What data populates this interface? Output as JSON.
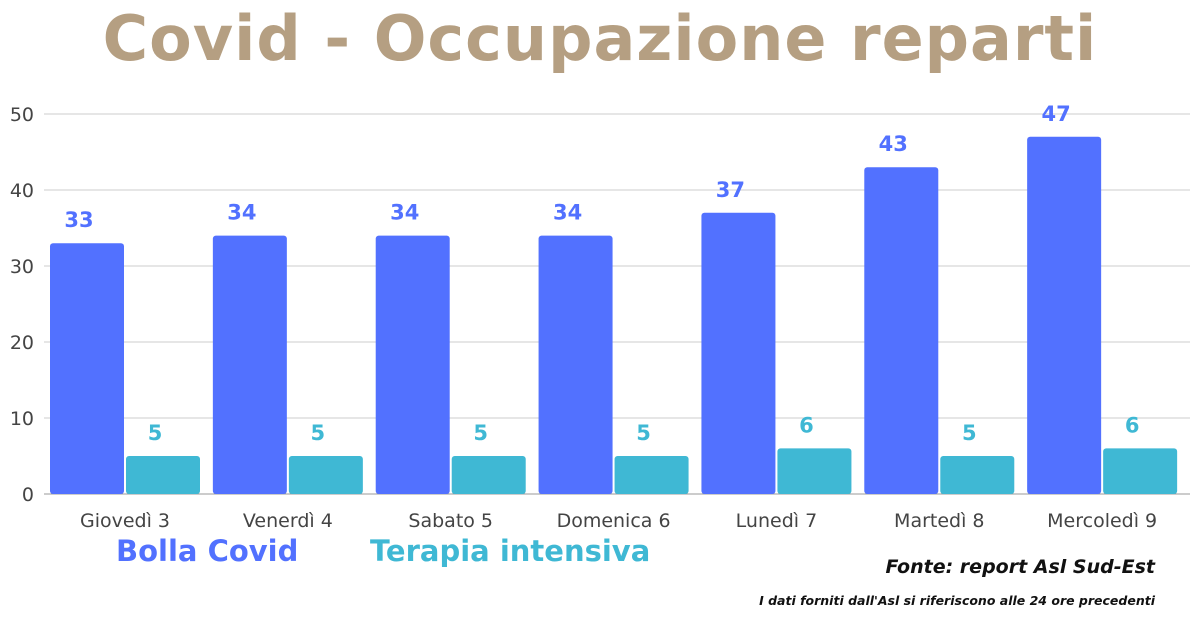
{
  "title": "Covid - Occupazione reparti",
  "legend": {
    "bolla": "Bolla Covid",
    "terapia": "Terapia intensiva"
  },
  "source": "Fonte: report Asl Sud-Est",
  "footnote": "I dati forniti dall'Asl si riferiscono alle 24 ore precedenti",
  "colors": {
    "title": "#b59f82",
    "bolla": "#5271ff",
    "terapia": "#3fb8d4",
    "grid": "#cccccc",
    "axis_text": "#444444"
  },
  "chart_data": {
    "type": "bar",
    "title": "Covid - Occupazione reparti",
    "categories": [
      "Giovedì 3",
      "Venerdì 4",
      "Sabato 5",
      "Domenica 6",
      "Lunedì 7",
      "Martedì 8",
      "Mercoledì 9"
    ],
    "series": [
      {
        "name": "Bolla Covid",
        "values": [
          33,
          34,
          34,
          34,
          37,
          43,
          47
        ],
        "color": "#5271ff"
      },
      {
        "name": "Terapia intensiva",
        "values": [
          5,
          5,
          5,
          5,
          6,
          5,
          6
        ],
        "color": "#3fb8d4"
      }
    ],
    "ylim": [
      0,
      50
    ],
    "yticks": [
      0,
      10,
      20,
      30,
      40,
      50
    ],
    "xlabel": "",
    "ylabel": "",
    "grid": true,
    "legend_position": "bottom-left",
    "data_labels": true
  }
}
